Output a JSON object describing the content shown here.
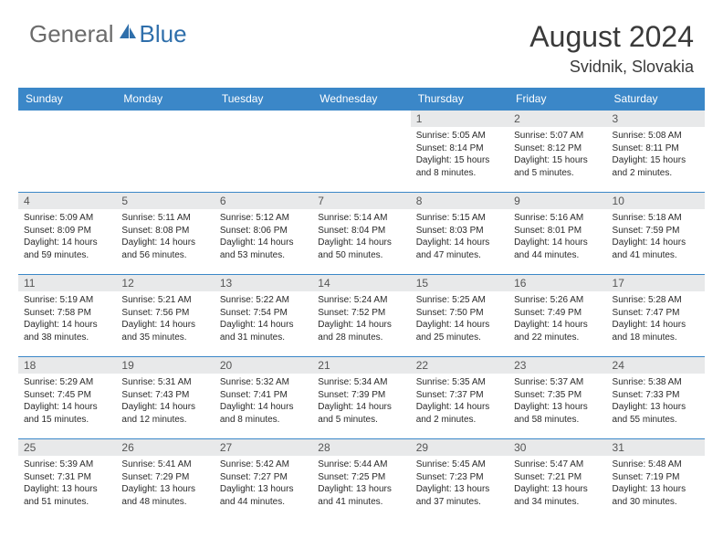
{
  "brand": {
    "part1": "General",
    "part2": "Blue"
  },
  "title": "August 2024",
  "location": "Svidnik, Slovakia",
  "colors": {
    "header_bg": "#3b87c8",
    "header_text": "#ffffff",
    "daynum_bg": "#e8e9ea",
    "border": "#3b87c8",
    "brand_gray": "#6b6b6b",
    "brand_blue": "#2f6fab"
  },
  "weekdays": [
    "Sunday",
    "Monday",
    "Tuesday",
    "Wednesday",
    "Thursday",
    "Friday",
    "Saturday"
  ],
  "grid": [
    [
      null,
      null,
      null,
      null,
      {
        "n": "1",
        "sr": "5:05 AM",
        "ss": "8:14 PM",
        "dl": "15 hours and 8 minutes."
      },
      {
        "n": "2",
        "sr": "5:07 AM",
        "ss": "8:12 PM",
        "dl": "15 hours and 5 minutes."
      },
      {
        "n": "3",
        "sr": "5:08 AM",
        "ss": "8:11 PM",
        "dl": "15 hours and 2 minutes."
      }
    ],
    [
      {
        "n": "4",
        "sr": "5:09 AM",
        "ss": "8:09 PM",
        "dl": "14 hours and 59 minutes."
      },
      {
        "n": "5",
        "sr": "5:11 AM",
        "ss": "8:08 PM",
        "dl": "14 hours and 56 minutes."
      },
      {
        "n": "6",
        "sr": "5:12 AM",
        "ss": "8:06 PM",
        "dl": "14 hours and 53 minutes."
      },
      {
        "n": "7",
        "sr": "5:14 AM",
        "ss": "8:04 PM",
        "dl": "14 hours and 50 minutes."
      },
      {
        "n": "8",
        "sr": "5:15 AM",
        "ss": "8:03 PM",
        "dl": "14 hours and 47 minutes."
      },
      {
        "n": "9",
        "sr": "5:16 AM",
        "ss": "8:01 PM",
        "dl": "14 hours and 44 minutes."
      },
      {
        "n": "10",
        "sr": "5:18 AM",
        "ss": "7:59 PM",
        "dl": "14 hours and 41 minutes."
      }
    ],
    [
      {
        "n": "11",
        "sr": "5:19 AM",
        "ss": "7:58 PM",
        "dl": "14 hours and 38 minutes."
      },
      {
        "n": "12",
        "sr": "5:21 AM",
        "ss": "7:56 PM",
        "dl": "14 hours and 35 minutes."
      },
      {
        "n": "13",
        "sr": "5:22 AM",
        "ss": "7:54 PM",
        "dl": "14 hours and 31 minutes."
      },
      {
        "n": "14",
        "sr": "5:24 AM",
        "ss": "7:52 PM",
        "dl": "14 hours and 28 minutes."
      },
      {
        "n": "15",
        "sr": "5:25 AM",
        "ss": "7:50 PM",
        "dl": "14 hours and 25 minutes."
      },
      {
        "n": "16",
        "sr": "5:26 AM",
        "ss": "7:49 PM",
        "dl": "14 hours and 22 minutes."
      },
      {
        "n": "17",
        "sr": "5:28 AM",
        "ss": "7:47 PM",
        "dl": "14 hours and 18 minutes."
      }
    ],
    [
      {
        "n": "18",
        "sr": "5:29 AM",
        "ss": "7:45 PM",
        "dl": "14 hours and 15 minutes."
      },
      {
        "n": "19",
        "sr": "5:31 AM",
        "ss": "7:43 PM",
        "dl": "14 hours and 12 minutes."
      },
      {
        "n": "20",
        "sr": "5:32 AM",
        "ss": "7:41 PM",
        "dl": "14 hours and 8 minutes."
      },
      {
        "n": "21",
        "sr": "5:34 AM",
        "ss": "7:39 PM",
        "dl": "14 hours and 5 minutes."
      },
      {
        "n": "22",
        "sr": "5:35 AM",
        "ss": "7:37 PM",
        "dl": "14 hours and 2 minutes."
      },
      {
        "n": "23",
        "sr": "5:37 AM",
        "ss": "7:35 PM",
        "dl": "13 hours and 58 minutes."
      },
      {
        "n": "24",
        "sr": "5:38 AM",
        "ss": "7:33 PM",
        "dl": "13 hours and 55 minutes."
      }
    ],
    [
      {
        "n": "25",
        "sr": "5:39 AM",
        "ss": "7:31 PM",
        "dl": "13 hours and 51 minutes."
      },
      {
        "n": "26",
        "sr": "5:41 AM",
        "ss": "7:29 PM",
        "dl": "13 hours and 48 minutes."
      },
      {
        "n": "27",
        "sr": "5:42 AM",
        "ss": "7:27 PM",
        "dl": "13 hours and 44 minutes."
      },
      {
        "n": "28",
        "sr": "5:44 AM",
        "ss": "7:25 PM",
        "dl": "13 hours and 41 minutes."
      },
      {
        "n": "29",
        "sr": "5:45 AM",
        "ss": "7:23 PM",
        "dl": "13 hours and 37 minutes."
      },
      {
        "n": "30",
        "sr": "5:47 AM",
        "ss": "7:21 PM",
        "dl": "13 hours and 34 minutes."
      },
      {
        "n": "31",
        "sr": "5:48 AM",
        "ss": "7:19 PM",
        "dl": "13 hours and 30 minutes."
      }
    ]
  ],
  "labels": {
    "sunrise": "Sunrise:",
    "sunset": "Sunset:",
    "daylight": "Daylight:"
  }
}
